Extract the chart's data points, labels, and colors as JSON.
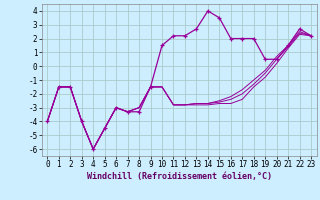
{
  "xlabel": "Windchill (Refroidissement éolien,°C)",
  "x": [
    0,
    1,
    2,
    3,
    4,
    5,
    6,
    7,
    8,
    9,
    10,
    11,
    12,
    13,
    14,
    15,
    16,
    17,
    18,
    19,
    20,
    21,
    22,
    23
  ],
  "line1": [
    -4,
    -1.5,
    -1.5,
    -4,
    -6,
    -4.5,
    -3,
    -3.3,
    -3.3,
    -1.5,
    1.5,
    2.2,
    2.2,
    2.7,
    4,
    3.5,
    2,
    2,
    2,
    0.5,
    0.5,
    1.5,
    2.7,
    2.2
  ],
  "line2": [
    -4,
    -1.5,
    -1.5,
    -4,
    -6,
    -4.5,
    -3,
    -3.3,
    -3,
    -1.5,
    -1.5,
    -2.8,
    -2.8,
    -2.8,
    -2.8,
    -2.7,
    -2.7,
    -2.4,
    -1.5,
    -0.8,
    0.2,
    1.3,
    2.3,
    2.2
  ],
  "line3": [
    -4,
    -1.5,
    -1.5,
    -4,
    -6,
    -4.5,
    -3,
    -3.3,
    -3,
    -1.5,
    -1.5,
    -2.8,
    -2.8,
    -2.7,
    -2.7,
    -2.6,
    -2.4,
    -2.0,
    -1.3,
    -0.5,
    0.5,
    1.4,
    2.4,
    2.2
  ],
  "line4": [
    -4,
    -1.5,
    -1.5,
    -4,
    -6,
    -4.5,
    -3,
    -3.3,
    -3,
    -1.5,
    -1.5,
    -2.8,
    -2.8,
    -2.7,
    -2.7,
    -2.5,
    -2.2,
    -1.7,
    -1.0,
    -0.3,
    0.7,
    1.5,
    2.5,
    2.2
  ],
  "color": "#990099",
  "bg_color": "#cceeff",
  "grid_color": "#aacccc",
  "ylim": [
    -6.5,
    4.5
  ],
  "yticks": [
    -6,
    -5,
    -4,
    -3,
    -2,
    -1,
    0,
    1,
    2,
    3,
    4
  ],
  "xticks": [
    0,
    1,
    2,
    3,
    4,
    5,
    6,
    7,
    8,
    9,
    10,
    11,
    12,
    13,
    14,
    15,
    16,
    17,
    18,
    19,
    20,
    21,
    22,
    23
  ],
  "tick_fontsize": 5.5,
  "label_fontsize": 6.0
}
